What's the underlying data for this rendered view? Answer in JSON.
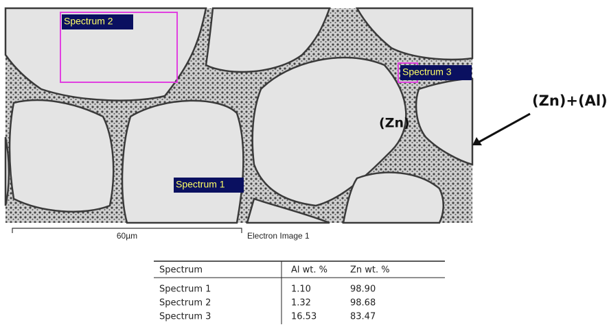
{
  "image": {
    "labels": [
      "Spectrum 2",
      "Spectrum 3",
      "Spectrum 1"
    ],
    "scale_bar": "60µm",
    "caption": "Electron Image 1"
  },
  "annotations": {
    "zn": "(Zn)",
    "zn_al": "(Zn)+(Al)"
  },
  "table": {
    "header": [
      "Spectrum",
      "Al wt. %",
      "Zn wt. %"
    ],
    "rows": [
      [
        "Spectrum 1",
        "1.10",
        "98.90"
      ],
      [
        "Spectrum 2",
        "1.32",
        "98.68"
      ],
      [
        "Spectrum 3",
        "16.53",
        "83.47"
      ]
    ]
  }
}
